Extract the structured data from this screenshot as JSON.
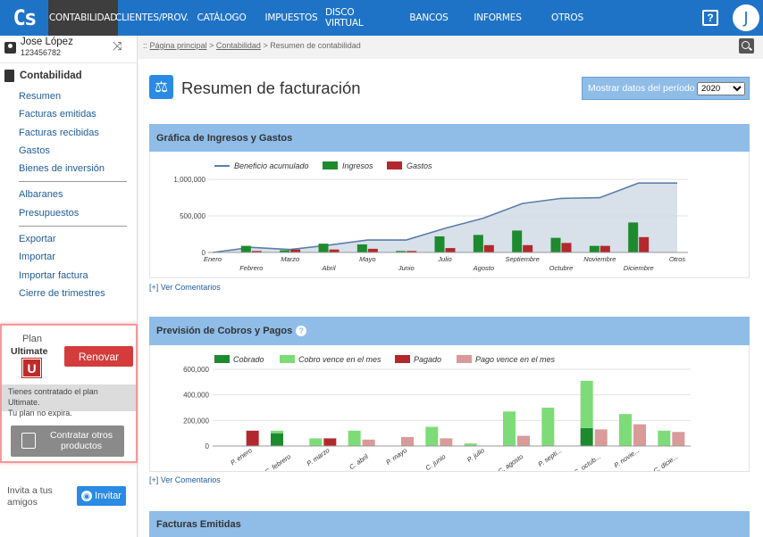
{
  "app": {
    "logo": "Cs"
  },
  "nav": {
    "items": [
      "CONTABILIDAD",
      "CLIENTES/PROV.",
      "CATÁLOGO",
      "IMPUESTOS",
      "DISCO VIRTUAL",
      "BANCOS",
      "INFORMES",
      "OTROS"
    ],
    "active": "CONTABILIDAD",
    "help": "?",
    "avatar": "J"
  },
  "user": {
    "name": "Jose López",
    "id": "123456782"
  },
  "sidebar": {
    "section": "Contabilidad",
    "group1": [
      "Resumen",
      "Facturas emitidas",
      "Facturas recibidas",
      "Gastos",
      "Bienes de inversión"
    ],
    "group2": [
      "Albaranes",
      "Presupuestos"
    ],
    "group3": [
      "Exportar",
      "Importar",
      "Importar factura",
      "Cierre de trimestres"
    ]
  },
  "plan": {
    "label": "Plan",
    "name": "Ultimate",
    "badge": "U",
    "renew": "Renovar",
    "info_line1": "Tienes contratado el plan Ultimate.",
    "info_line2": "Tu plan no expira.",
    "contract_line1": "Contratar otros",
    "contract_line2": "productos"
  },
  "invite": {
    "line1": "Invita a tus",
    "line2": "amigos",
    "button": "Invitar"
  },
  "breadcrumb": {
    "prefix": "::",
    "home": "Página principal",
    "sep": ">",
    "section": "Contabilidad",
    "current": "Resumen de contabilidad"
  },
  "page": {
    "title": "Resumen de facturación",
    "period_label": "Mostrar datos del período",
    "period_value": "2020",
    "comments_link": "[+] Ver Comentarios",
    "panel3_title": "Facturas Emitidas"
  },
  "colors": {
    "accent": "#1f73c7",
    "panel": "#8fbde8",
    "green": "#1e8a2e",
    "red": "#b3282d",
    "lightgreen": "#7ddc78",
    "pink": "#d99a9a"
  },
  "chart_data": [
    {
      "type": "bar",
      "title": "Gráfica de Ingresos y Gastos",
      "categories": [
        "Enero",
        "Febrero",
        "Marzo",
        "Abril",
        "Mayo",
        "Junio",
        "Julio",
        "Agosto",
        "Septiembre",
        "Octubre",
        "Noviembre",
        "Diciembre",
        "Otros"
      ],
      "series": [
        {
          "name": "Ingresos",
          "type": "bar",
          "color": "#1e8a2e",
          "values": [
            0,
            90000,
            30000,
            120000,
            110000,
            20000,
            220000,
            240000,
            300000,
            200000,
            90000,
            410000,
            0
          ]
        },
        {
          "name": "Gastos",
          "type": "bar",
          "color": "#b3282d",
          "values": [
            0,
            20000,
            40000,
            40000,
            50000,
            20000,
            60000,
            100000,
            100000,
            130000,
            90000,
            210000,
            0
          ]
        },
        {
          "name": "Beneficio acumulado",
          "type": "area",
          "color": "#5b7fa8",
          "values": [
            0,
            70000,
            40000,
            100000,
            170000,
            170000,
            330000,
            470000,
            670000,
            740000,
            750000,
            950000,
            950000
          ]
        }
      ],
      "yticks": [
        "1,000,000",
        "500,000",
        "0"
      ],
      "ylim": [
        0,
        1050000
      ],
      "legend": "top-left",
      "grid": true
    },
    {
      "type": "bar",
      "title": "Previsión de Cobros y Pagos",
      "categories": [
        "P. enero",
        "C. febrero",
        "P. marzo",
        "C. abril",
        "P. mayo",
        "C. junio",
        "P. julio",
        "C. agosto",
        "P. septi...",
        "C. octub...",
        "P. novie...",
        "C. dicie..."
      ],
      "groups": [
        "Enero",
        "Febrero",
        "Marzo",
        "Abril",
        "Mayo",
        "Junio",
        "Julio",
        "Agosto",
        "Septiembre",
        "Octubre",
        "Noviembre",
        "Diciembre"
      ],
      "series": [
        {
          "name": "Cobrado",
          "color": "#1e8a2e",
          "values": [
            0,
            100000,
            0,
            0,
            0,
            0,
            0,
            0,
            0,
            140000,
            0,
            0
          ]
        },
        {
          "name": "Cobro vence en el mes",
          "color": "#7ddc78",
          "values": [
            0,
            20000,
            60000,
            120000,
            0,
            150000,
            20000,
            270000,
            300000,
            370000,
            250000,
            120000
          ]
        },
        {
          "name": "Pagado",
          "color": "#b3282d",
          "values": [
            120000,
            0,
            60000,
            0,
            0,
            0,
            0,
            0,
            0,
            0,
            0,
            0
          ]
        },
        {
          "name": "Pago vence en el mes",
          "color": "#d99a9a",
          "values": [
            0,
            0,
            0,
            50000,
            70000,
            60000,
            0,
            80000,
            0,
            130000,
            170000,
            110000
          ]
        }
      ],
      "yticks": [
        "600,000",
        "400,000",
        "200,000",
        "0"
      ],
      "ylim": [
        0,
        600000
      ],
      "legend": "top-left",
      "grid": true
    }
  ]
}
